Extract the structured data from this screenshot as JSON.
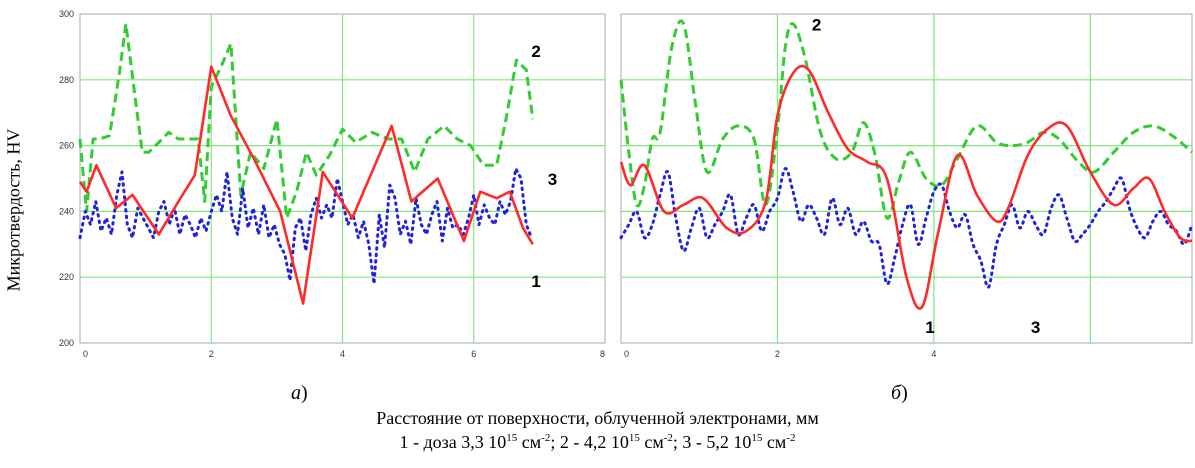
{
  "ylabel": "Микротвердость, HV",
  "xlabel": "Расстояние от поверхности, облученной электронами, мм",
  "legend": {
    "s1": {
      "prefix": "1 - доза 3,3 10",
      "exp": "15",
      "unit": " см",
      "unit_exp": "-2",
      "sep": "; "
    },
    "s2": {
      "prefix": "2 - 4,2 10",
      "exp": "15",
      "unit": " см",
      "unit_exp": "-2",
      "sep": "; "
    },
    "s3": {
      "prefix": "3 - 5,2 10",
      "exp": "15",
      "unit": " см",
      "unit_exp": "-2"
    }
  },
  "panel_labels": {
    "a": {
      "letter": "а",
      "paren": ")"
    },
    "b": {
      "letter": "б",
      "paren": ")"
    }
  },
  "colors": {
    "s1": "#ff2a2a",
    "s2": "#33cc33",
    "s3": "#2222dd",
    "grid": "#7fe87f",
    "border": "#aaaaaa"
  },
  "chart_data": [
    {
      "type": "line",
      "panel": "а",
      "xlim": [
        0,
        8
      ],
      "ylim": [
        200,
        300
      ],
      "xticks": [
        "0",
        "2",
        "4",
        "6",
        "8"
      ],
      "yticks": [
        "200",
        "220",
        "240",
        "260",
        "280",
        "300"
      ],
      "grid": true,
      "smooth": false,
      "series": [
        {
          "name": "1",
          "style": "solid",
          "x": [
            0,
            0.1,
            0.25,
            0.55,
            0.8,
            1.2,
            1.5,
            1.75,
            2.0,
            2.3,
            2.65,
            3.05,
            3.4,
            3.7,
            4.15,
            4.75,
            5.05,
            5.45,
            5.85,
            6.1,
            6.35,
            6.55,
            6.75,
            6.9
          ],
          "y": [
            249,
            246,
            254,
            241,
            245,
            233,
            243,
            251,
            284,
            269,
            256,
            240,
            212,
            252,
            238,
            266,
            243,
            250,
            231,
            246,
            244,
            246,
            235,
            230
          ]
        },
        {
          "name": "2",
          "style": "dashed",
          "x": [
            0,
            0.1,
            0.2,
            0.3,
            0.45,
            0.6,
            0.7,
            0.85,
            0.95,
            1.05,
            1.2,
            1.35,
            1.5,
            1.65,
            1.8,
            1.9,
            2.0,
            2.15,
            2.3,
            2.45,
            2.6,
            2.8,
            3.0,
            3.15,
            3.3,
            3.45,
            3.6,
            3.8,
            4.0,
            4.2,
            4.45,
            4.7,
            4.9,
            5.1,
            5.3,
            5.55,
            5.75,
            5.95,
            6.15,
            6.35,
            6.5,
            6.65,
            6.8,
            6.9
          ],
          "y": [
            262,
            240,
            262,
            262,
            263,
            282,
            297,
            273,
            258,
            258,
            261,
            264,
            262,
            262,
            262,
            243,
            278,
            284,
            291,
            245,
            258,
            253,
            268,
            238,
            246,
            258,
            251,
            257,
            265,
            261,
            264,
            262,
            262,
            252,
            262,
            266,
            262,
            260,
            254,
            254,
            269,
            286,
            283,
            268
          ]
        },
        {
          "name": "3",
          "style": "dotted",
          "x": [
            0,
            0.08,
            0.16,
            0.24,
            0.32,
            0.4,
            0.48,
            0.56,
            0.64,
            0.72,
            0.8,
            0.88,
            0.96,
            1.04,
            1.12,
            1.2,
            1.28,
            1.36,
            1.44,
            1.52,
            1.6,
            1.68,
            1.76,
            1.84,
            1.92,
            2.0,
            2.08,
            2.16,
            2.24,
            2.32,
            2.4,
            2.48,
            2.56,
            2.64,
            2.72,
            2.8,
            2.88,
            2.96,
            3.04,
            3.12,
            3.2,
            3.28,
            3.36,
            3.44,
            3.52,
            3.6,
            3.68,
            3.76,
            3.84,
            3.92,
            4.0,
            4.08,
            4.16,
            4.24,
            4.32,
            4.4,
            4.48,
            4.56,
            4.64,
            4.72,
            4.8,
            4.88,
            4.96,
            5.04,
            5.12,
            5.2,
            5.28,
            5.36,
            5.44,
            5.52,
            5.6,
            5.68,
            5.76,
            5.84,
            5.92,
            6.0,
            6.08,
            6.16,
            6.24,
            6.32,
            6.4,
            6.48,
            6.56,
            6.64,
            6.72,
            6.8,
            6.88
          ],
          "y": [
            232,
            240,
            236,
            243,
            234,
            238,
            233,
            245,
            252,
            236,
            232,
            241,
            238,
            235,
            232,
            240,
            243,
            236,
            241,
            233,
            239,
            236,
            232,
            238,
            234,
            240,
            245,
            240,
            252,
            238,
            233,
            247,
            235,
            241,
            233,
            242,
            232,
            236,
            230,
            227,
            219,
            235,
            238,
            228,
            239,
            244,
            238,
            242,
            238,
            250,
            243,
            236,
            239,
            232,
            237,
            230,
            218,
            239,
            229,
            248,
            244,
            233,
            237,
            230,
            244,
            236,
            233,
            239,
            243,
            231,
            241,
            235,
            236,
            233,
            238,
            245,
            236,
            242,
            238,
            236,
            243,
            239,
            243,
            253,
            250,
            236,
            232
          ]
        }
      ],
      "annotations": [
        {
          "text": "2",
          "x": 6.95,
          "y": 287
        },
        {
          "text": "3",
          "x": 7.2,
          "y": 248
        },
        {
          "text": "1",
          "x": 6.95,
          "y": 217
        }
      ]
    },
    {
      "type": "line",
      "panel": "б",
      "xlim": [
        0,
        7.3
      ],
      "ylim": [
        200,
        300
      ],
      "xticks": [
        "0",
        "2",
        "4"
      ],
      "yticks": [],
      "grid": true,
      "smooth": true,
      "series": [
        {
          "name": "1",
          "style": "solid",
          "x": [
            0,
            0.12,
            0.3,
            0.55,
            0.8,
            1.05,
            1.35,
            1.6,
            1.85,
            2.0,
            2.2,
            2.4,
            2.65,
            2.9,
            3.15,
            3.4,
            3.65,
            3.85,
            4.05,
            4.3,
            4.55,
            4.8,
            4.95,
            5.2,
            5.45,
            5.7,
            6.0,
            6.3,
            6.55,
            6.75,
            6.95,
            7.15,
            7.3
          ],
          "y": [
            255,
            248,
            254,
            240,
            242,
            244,
            235,
            234,
            243,
            269,
            282,
            283,
            270,
            259,
            255,
            250,
            220,
            211,
            233,
            257,
            245,
            237,
            241,
            257,
            265,
            266,
            252,
            242,
            247,
            250,
            240,
            232,
            231
          ]
        },
        {
          "name": "2",
          "style": "dashed",
          "x": [
            0,
            0.1,
            0.2,
            0.3,
            0.4,
            0.5,
            0.65,
            0.8,
            0.95,
            1.1,
            1.3,
            1.5,
            1.7,
            1.85,
            2.0,
            2.1,
            2.2,
            2.35,
            2.55,
            2.75,
            2.95,
            3.1,
            3.25,
            3.4,
            3.55,
            3.7,
            3.9,
            4.1,
            4.3,
            4.55,
            4.8,
            5.0,
            5.2,
            5.4,
            5.6,
            5.85,
            6.05,
            6.3,
            6.55,
            6.8,
            7.05,
            7.3
          ],
          "y": [
            280,
            258,
            242,
            248,
            262,
            264,
            290,
            297,
            273,
            252,
            262,
            266,
            262,
            242,
            265,
            290,
            297,
            287,
            264,
            256,
            258,
            267,
            257,
            238,
            249,
            258,
            250,
            248,
            256,
            266,
            261,
            260,
            261,
            264,
            262,
            255,
            252,
            258,
            264,
            266,
            263,
            258
          ]
        },
        {
          "name": "3",
          "style": "dotted",
          "x": [
            0,
            0.1,
            0.2,
            0.3,
            0.4,
            0.5,
            0.6,
            0.7,
            0.8,
            0.9,
            1.0,
            1.1,
            1.2,
            1.3,
            1.4,
            1.5,
            1.6,
            1.7,
            1.8,
            1.9,
            2.0,
            2.1,
            2.2,
            2.3,
            2.4,
            2.5,
            2.6,
            2.7,
            2.8,
            2.9,
            3.0,
            3.1,
            3.2,
            3.3,
            3.4,
            3.5,
            3.6,
            3.7,
            3.8,
            3.9,
            4.0,
            4.1,
            4.2,
            4.3,
            4.4,
            4.5,
            4.6,
            4.7,
            4.8,
            4.9,
            5.0,
            5.1,
            5.2,
            5.3,
            5.4,
            5.5,
            5.6,
            5.7,
            5.8,
            5.9,
            6.0,
            6.1,
            6.2,
            6.3,
            6.4,
            6.5,
            6.6,
            6.7,
            6.8,
            6.9,
            7.0,
            7.1,
            7.2,
            7.3
          ],
          "y": [
            232,
            236,
            240,
            232,
            236,
            245,
            252,
            238,
            228,
            235,
            241,
            232,
            236,
            240,
            245,
            233,
            238,
            242,
            234,
            240,
            244,
            253,
            246,
            237,
            242,
            238,
            233,
            244,
            236,
            241,
            233,
            237,
            231,
            230,
            218,
            226,
            236,
            242,
            230,
            238,
            246,
            248,
            240,
            235,
            239,
            230,
            225,
            217,
            230,
            236,
            242,
            235,
            240,
            236,
            233,
            241,
            245,
            238,
            231,
            233,
            236,
            240,
            243,
            247,
            250,
            241,
            235,
            232,
            237,
            240,
            236,
            234,
            230,
            236
          ]
        }
      ],
      "annotations": [
        {
          "text": "2",
          "x": 2.5,
          "y": 295
        },
        {
          "text": "1",
          "x": 3.95,
          "y": 203
        },
        {
          "text": "3",
          "x": 5.3,
          "y": 203
        }
      ]
    }
  ]
}
